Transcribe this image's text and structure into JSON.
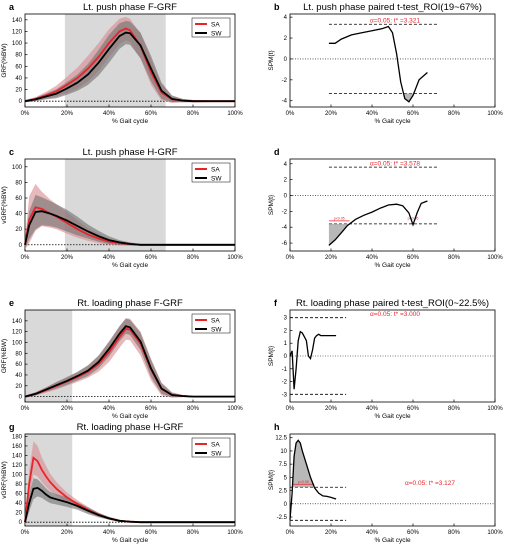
{
  "chart_data": [
    {
      "id": "a",
      "panel_label": "a",
      "type": "line",
      "title": "Lt. push phase F-GRF",
      "xlabel": "% Gait cycle",
      "ylabel": "GRF(%BW)",
      "xticks": [
        "0%",
        "20%",
        "40%",
        "60%",
        "80%",
        "100%"
      ],
      "yticks": [
        0,
        20,
        40,
        60,
        80,
        100,
        120,
        140
      ],
      "xlim": [
        0,
        100
      ],
      "ylim": [
        -10,
        150
      ],
      "roi": [
        19,
        67
      ],
      "zero_line": true,
      "legend": {
        "position": "top-right",
        "entries": [
          "SA",
          "SW"
        ]
      },
      "x": [
        0,
        5,
        10,
        15,
        20,
        25,
        30,
        35,
        40,
        45,
        48,
        50,
        55,
        60,
        65,
        70,
        75,
        80,
        90,
        100
      ],
      "series": [
        {
          "name": "SA",
          "color": "#e8242b",
          "band_color": "#d98a8f",
          "values": [
            0,
            4,
            10,
            17,
            28,
            40,
            56,
            76,
            100,
            120,
            125,
            122,
            95,
            50,
            15,
            3,
            1,
            0,
            0,
            0
          ],
          "sd": [
            2,
            3,
            6,
            10,
            14,
            18,
            22,
            24,
            24,
            22,
            20,
            20,
            22,
            22,
            14,
            6,
            3,
            2,
            1,
            1
          ]
        },
        {
          "name": "SW",
          "color": "#000000",
          "band_color": "#6f6f6f",
          "values": [
            0,
            3,
            8,
            13,
            22,
            32,
            46,
            66,
            90,
            112,
            118,
            117,
            96,
            56,
            18,
            4,
            1,
            0,
            0,
            0
          ],
          "sd": [
            2,
            3,
            5,
            8,
            11,
            14,
            18,
            22,
            24,
            22,
            20,
            20,
            22,
            22,
            14,
            6,
            3,
            2,
            1,
            1
          ]
        }
      ]
    },
    {
      "id": "b",
      "panel_label": "b",
      "type": "line",
      "title": "Lt. push phase paired t-test_ROI(19~67%)",
      "xlabel": "% Gait cycle",
      "ylabel": "SPM{t}",
      "xticks": [
        "0%",
        "20%",
        "40%",
        "60%",
        "80%",
        "100%"
      ],
      "yticks": [
        -4,
        -2,
        0,
        2,
        4
      ],
      "xlim": [
        0,
        100
      ],
      "ylim": [
        -4.6,
        4.3
      ],
      "threshold": 3.321,
      "threshold_text": "α=0.05:  t* =3.321",
      "cluster_mark_text": "",
      "x": [
        19,
        22,
        25,
        30,
        35,
        40,
        45,
        48,
        50,
        52,
        54,
        56,
        58,
        60,
        63,
        67
      ],
      "values": [
        1.5,
        1.5,
        1.9,
        2.3,
        2.5,
        2.7,
        2.9,
        3.1,
        2.5,
        0.5,
        -2.2,
        -3.8,
        -4.1,
        -3.5,
        -2.0,
        -1.3
      ]
    },
    {
      "id": "c",
      "panel_label": "c",
      "type": "line",
      "title": "Lt. push phase H-GRF",
      "xlabel": "% Gait cycle",
      "ylabel": "vGRF(%BW)",
      "xticks": [
        "0%",
        "20%",
        "40%",
        "60%",
        "80%",
        "100%"
      ],
      "yticks": [
        0,
        20,
        40,
        60,
        80,
        100
      ],
      "xlim": [
        0,
        100
      ],
      "ylim": [
        -8,
        110
      ],
      "roi": [
        19,
        67
      ],
      "zero_line": true,
      "legend": {
        "position": "top-right",
        "entries": [
          "SA",
          "SW"
        ]
      },
      "x": [
        0,
        2,
        5,
        8,
        12,
        15,
        20,
        25,
        30,
        35,
        40,
        45,
        50,
        55,
        60,
        70,
        80,
        90,
        100
      ],
      "series": [
        {
          "name": "SA",
          "color": "#e8242b",
          "band_color": "#d98a8f",
          "values": [
            0,
            32,
            48,
            46,
            40,
            36,
            28,
            20,
            13,
            8,
            4,
            2,
            1,
            0,
            0,
            0,
            0,
            0,
            0
          ],
          "sd": [
            6,
            30,
            30,
            22,
            18,
            16,
            14,
            11,
            8,
            6,
            4,
            3,
            2,
            1,
            1,
            1,
            1,
            1,
            1
          ]
        },
        {
          "name": "SW",
          "color": "#000000",
          "band_color": "#6f6f6f",
          "values": [
            0,
            25,
            42,
            43,
            40,
            37,
            31,
            24,
            17,
            11,
            6,
            3,
            1,
            0,
            0,
            0,
            0,
            0,
            0
          ],
          "sd": [
            5,
            18,
            22,
            18,
            16,
            15,
            14,
            12,
            9,
            7,
            5,
            3,
            2,
            1,
            1,
            1,
            1,
            1,
            1
          ]
        }
      ]
    },
    {
      "id": "d",
      "panel_label": "d",
      "type": "line",
      "title": "",
      "xlabel": "% Gait cycle",
      "ylabel": "SPM{t}",
      "xticks": [
        "0%",
        "20%",
        "40%",
        "60%",
        "80%",
        "100%"
      ],
      "yticks": [
        -6,
        -4,
        -2,
        0,
        2,
        4
      ],
      "xlim": [
        0,
        100
      ],
      "ylim": [
        -7,
        4.6
      ],
      "threshold": 3.578,
      "threshold_text": "α=0.05:  t* =3.578",
      "cluster_mark_text": "p<0.05",
      "x": [
        19,
        22,
        25,
        28,
        32,
        36,
        40,
        44,
        48,
        52,
        55,
        58,
        60,
        62,
        64,
        67
      ],
      "values": [
        -6.3,
        -5.6,
        -4.7,
        -3.8,
        -3.0,
        -2.5,
        -2.1,
        -1.6,
        -1.2,
        -1.1,
        -1.3,
        -2.2,
        -3.7,
        -2.2,
        -1.0,
        -0.7
      ]
    },
    {
      "id": "e",
      "panel_label": "e",
      "type": "line",
      "title": "Rt. loading phase F-GRF",
      "xlabel": "% Gait cycle",
      "ylabel": "GRF(%BW)",
      "xticks": [
        "0%",
        "20%",
        "40%",
        "60%",
        "80%",
        "100%"
      ],
      "yticks": [
        0,
        20,
        40,
        60,
        80,
        100,
        120,
        140
      ],
      "xlim": [
        0,
        100
      ],
      "ylim": [
        -10,
        160
      ],
      "roi": [
        0,
        22.5
      ],
      "zero_line": true,
      "legend": {
        "position": "top-right",
        "entries": [
          "SA",
          "SW"
        ]
      },
      "x": [
        0,
        5,
        10,
        15,
        20,
        25,
        30,
        35,
        40,
        45,
        48,
        50,
        55,
        60,
        65,
        70,
        75,
        80,
        90,
        100
      ],
      "series": [
        {
          "name": "SA",
          "color": "#e8242b",
          "band_color": "#d98a8f",
          "values": [
            0,
            5,
            12,
            20,
            28,
            36,
            46,
            60,
            82,
            110,
            125,
            124,
            98,
            50,
            14,
            3,
            1,
            0,
            0,
            0
          ],
          "sd": [
            2,
            3,
            5,
            7,
            8,
            9,
            11,
            14,
            18,
            20,
            20,
            20,
            22,
            20,
            12,
            5,
            2,
            1,
            1,
            1
          ]
        },
        {
          "name": "SW",
          "color": "#000000",
          "band_color": "#6f6f6f",
          "values": [
            0,
            5,
            13,
            21,
            29,
            38,
            48,
            64,
            88,
            116,
            130,
            128,
            102,
            52,
            15,
            3,
            1,
            0,
            0,
            0
          ],
          "sd": [
            2,
            3,
            4,
            6,
            7,
            8,
            10,
            12,
            14,
            14,
            14,
            14,
            16,
            16,
            10,
            4,
            2,
            1,
            1,
            1
          ]
        }
      ]
    },
    {
      "id": "f",
      "panel_label": "f",
      "type": "line",
      "title": "Rt. loading phase paired t-test_ROI(0~22.5%)",
      "xlabel": "% Gait cycle",
      "ylabel": "SPM{t}",
      "xticks": [
        "0%",
        "20%",
        "40%",
        "60%",
        "80%",
        "100%"
      ],
      "yticks": [
        -3,
        -2,
        -1,
        0,
        1,
        2,
        3
      ],
      "xlim": [
        0,
        100
      ],
      "ylim": [
        -3.6,
        3.6
      ],
      "threshold": 3.0,
      "threshold_text": "α=0.05:  t* =3.000",
      "cluster_mark_text": "",
      "x": [
        0,
        1,
        2,
        3,
        4,
        5,
        6,
        7,
        8,
        9,
        10,
        11,
        12,
        13,
        14,
        15,
        17,
        20,
        22.5
      ],
      "values": [
        0.0,
        0.4,
        -2.6,
        -1.0,
        1.2,
        1.9,
        1.8,
        1.5,
        1.2,
        0.0,
        -0.2,
        0.5,
        1.4,
        1.6,
        1.7,
        1.6,
        1.6,
        1.6,
        1.6
      ]
    },
    {
      "id": "g",
      "panel_label": "g",
      "type": "line",
      "title": "Rt. loading phase H-GRF",
      "xlabel": "% Gait cycle",
      "ylabel": "vGRF(%BW)",
      "xticks": [
        "0%",
        "20%",
        "40%",
        "60%",
        "80%",
        "100%"
      ],
      "yticks": [
        0,
        20,
        40,
        60,
        80,
        100,
        120,
        140,
        160,
        180
      ],
      "xlim": [
        0,
        100
      ],
      "ylim": [
        -8,
        185
      ],
      "roi": [
        0,
        22.5
      ],
      "zero_line": true,
      "legend": {
        "position": "top-right",
        "entries": [
          "SA",
          "SW"
        ]
      },
      "x": [
        0,
        2,
        4,
        6,
        8,
        10,
        12,
        15,
        20,
        25,
        30,
        35,
        40,
        45,
        50,
        55,
        60,
        70,
        80,
        90,
        100
      ],
      "series": [
        {
          "name": "SA",
          "color": "#e8242b",
          "band_color": "#d98a8f",
          "values": [
            0,
            80,
            135,
            128,
            110,
            96,
            84,
            70,
            52,
            38,
            26,
            16,
            8,
            3,
            1,
            0,
            0,
            0,
            0,
            0,
            0
          ],
          "sd": [
            10,
            30,
            35,
            32,
            26,
            22,
            18,
            14,
            10,
            8,
            6,
            4,
            3,
            2,
            1,
            1,
            1,
            1,
            1,
            1,
            1
          ]
        },
        {
          "name": "SW",
          "color": "#000000",
          "band_color": "#6f6f6f",
          "values": [
            0,
            40,
            70,
            72,
            66,
            58,
            52,
            48,
            42,
            34,
            24,
            15,
            8,
            3,
            1,
            0,
            0,
            0,
            0,
            0,
            0
          ],
          "sd": [
            6,
            18,
            22,
            18,
            15,
            13,
            12,
            11,
            10,
            8,
            7,
            5,
            3,
            2,
            1,
            1,
            1,
            1,
            1,
            1,
            1
          ]
        }
      ]
    },
    {
      "id": "h",
      "panel_label": "h",
      "type": "line",
      "title": "",
      "xlabel": "% Gait cycle",
      "ylabel": "SPM{t}",
      "xticks": [
        "0%",
        "20%",
        "40%",
        "60%",
        "80%",
        "100%"
      ],
      "yticks": [
        -2.5,
        0,
        2.5,
        5,
        7.5,
        10,
        12.5
      ],
      "xlim": [
        0,
        100
      ],
      "ylim": [
        -4.2,
        13.2
      ],
      "threshold": 3.127,
      "threshold_text": "α=0.05:  t* =3.127",
      "cluster_mark_text": "p<0.05",
      "x": [
        0,
        1,
        2,
        3,
        4,
        5,
        6,
        8,
        10,
        12,
        14,
        16,
        18,
        20,
        22.5
      ],
      "values": [
        -3.0,
        2.0,
        9.0,
        11.5,
        12.0,
        11.5,
        10.0,
        7.5,
        5.0,
        3.0,
        2.0,
        1.5,
        1.4,
        1.2,
        0.9
      ]
    }
  ]
}
